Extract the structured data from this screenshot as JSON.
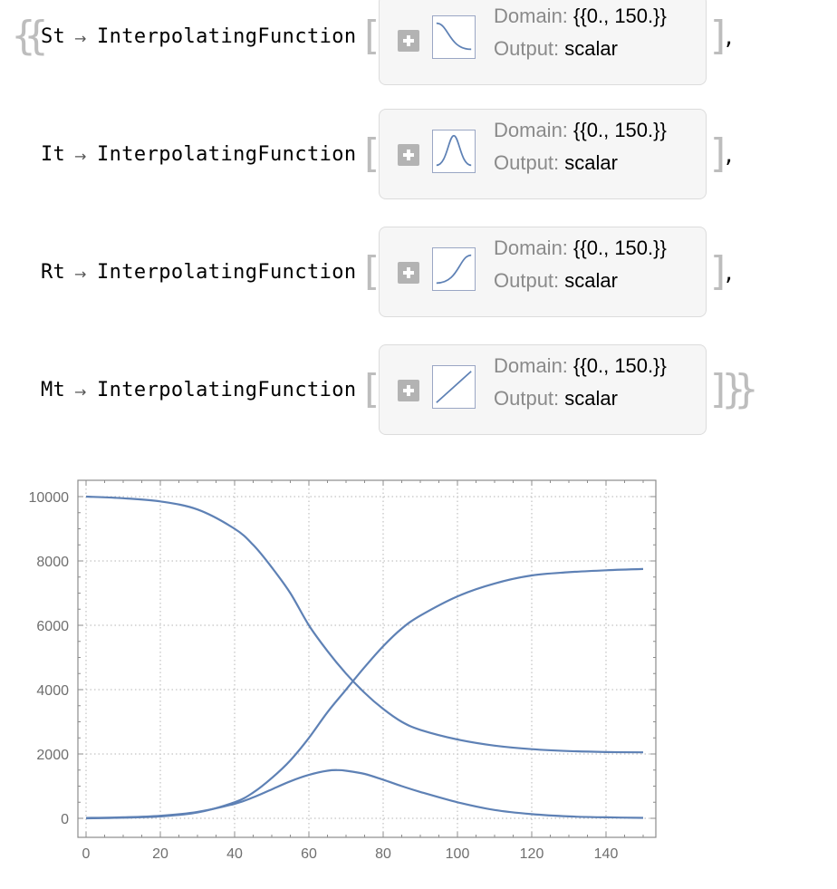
{
  "rows": [
    {
      "var": "St",
      "fn": "InterpolatingFunction",
      "domain_label": "Domain:",
      "domain_value": "{{0., 150.}}",
      "output_label": "Output:",
      "output_value": "scalar",
      "thumb_icon": "sigmoid-down-icon",
      "trailing": ","
    },
    {
      "var": "It",
      "fn": "InterpolatingFunction",
      "domain_label": "Domain:",
      "domain_value": "{{0., 150.}}",
      "output_label": "Output:",
      "output_value": "scalar",
      "thumb_icon": "bell-curve-icon",
      "trailing": ","
    },
    {
      "var": "Rt",
      "fn": "InterpolatingFunction",
      "domain_label": "Domain:",
      "domain_value": "{{0., 150.}}",
      "output_label": "Output:",
      "output_value": "scalar",
      "thumb_icon": "sigmoid-up-icon",
      "trailing": ","
    },
    {
      "var": "Mt",
      "fn": "InterpolatingFunction",
      "domain_label": "Domain:",
      "domain_value": "{{0., 150.}}",
      "output_label": "Output:",
      "output_value": "scalar",
      "thumb_icon": "linear-icon",
      "trailing": ""
    }
  ],
  "arrow_glyph": "→",
  "chart_data": {
    "type": "line",
    "title": "",
    "xlabel": "",
    "ylabel": "",
    "xlim": [
      0,
      150
    ],
    "ylim": [
      -400,
      10500
    ],
    "xticks": [
      0,
      20,
      40,
      60,
      80,
      100,
      120,
      140
    ],
    "yticks": [
      0,
      2000,
      4000,
      6000,
      8000,
      10000
    ],
    "grid": true,
    "line_color": "#5e81b5",
    "series": [
      {
        "x": [
          0,
          10,
          20,
          30,
          40,
          45,
          50,
          55,
          60,
          65,
          70,
          75,
          80,
          85,
          90,
          100,
          110,
          120,
          130,
          140,
          150
        ],
        "values": [
          10000,
          9950,
          9850,
          9600,
          9000,
          8500,
          7800,
          7000,
          6000,
          5200,
          4500,
          3900,
          3400,
          3000,
          2750,
          2450,
          2260,
          2150,
          2090,
          2060,
          2050
        ]
      },
      {
        "x": [
          0,
          10,
          20,
          30,
          40,
          45,
          50,
          55,
          60,
          65,
          68,
          70,
          75,
          80,
          85,
          90,
          100,
          110,
          120,
          130,
          140,
          150
        ],
        "values": [
          10,
          30,
          80,
          200,
          450,
          650,
          900,
          1150,
          1350,
          1480,
          1500,
          1480,
          1380,
          1200,
          1000,
          820,
          500,
          260,
          130,
          60,
          30,
          15
        ]
      },
      {
        "x": [
          0,
          10,
          20,
          30,
          40,
          45,
          50,
          55,
          60,
          65,
          70,
          75,
          80,
          85,
          90,
          100,
          110,
          120,
          130,
          140,
          150
        ],
        "values": [
          0,
          20,
          60,
          180,
          500,
          800,
          1250,
          1800,
          2500,
          3300,
          4000,
          4700,
          5350,
          5900,
          6300,
          6900,
          7300,
          7550,
          7650,
          7710,
          7750
        ]
      }
    ]
  }
}
